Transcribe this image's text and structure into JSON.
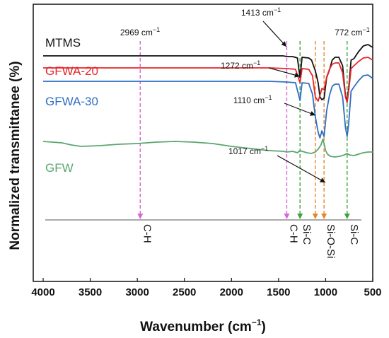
{
  "chart_data": {
    "type": "line",
    "xlabel": "Wavenumber (cm",
    "xlabel_sup": "−1",
    "xlabel_end": ")",
    "ylabel": "Normalized transmittanee (%)",
    "xlim": [
      4000,
      500
    ],
    "x_ticks": [
      4000,
      3500,
      3000,
      2500,
      2000,
      1500,
      1000,
      500
    ],
    "y_ticks_shown": false,
    "grid": false,
    "series": [
      {
        "name": "MTMS",
        "color": "#111111",
        "points": [
          [
            4000,
            76
          ],
          [
            3000,
            76
          ],
          [
            2000,
            76
          ],
          [
            1600,
            76
          ],
          [
            1450,
            76
          ],
          [
            1413,
            75
          ],
          [
            1350,
            75
          ],
          [
            1300,
            73
          ],
          [
            1272,
            45
          ],
          [
            1250,
            74
          ],
          [
            1180,
            73
          ],
          [
            1150,
            70
          ],
          [
            1110,
            55
          ],
          [
            1080,
            38
          ],
          [
            1060,
            18
          ],
          [
            1040,
            14
          ],
          [
            1017,
            16
          ],
          [
            990,
            45
          ],
          [
            960,
            56
          ],
          [
            930,
            70
          ],
          [
            900,
            74
          ],
          [
            860,
            74
          ],
          [
            820,
            62
          ],
          [
            790,
            20
          ],
          [
            772,
            12
          ],
          [
            755,
            30
          ],
          [
            730,
            70
          ],
          [
            700,
            72
          ],
          [
            650,
            82
          ],
          [
            600,
            90
          ],
          [
            550,
            92
          ],
          [
            500,
            88
          ]
        ]
      },
      {
        "name": "GFWA-20",
        "color": "#e8262a",
        "points": [
          [
            4000,
            59
          ],
          [
            3000,
            59
          ],
          [
            2000,
            59
          ],
          [
            1600,
            59
          ],
          [
            1413,
            58
          ],
          [
            1320,
            57
          ],
          [
            1272,
            38
          ],
          [
            1250,
            58
          ],
          [
            1180,
            57
          ],
          [
            1140,
            48
          ],
          [
            1110,
            18
          ],
          [
            1080,
            12
          ],
          [
            1060,
            20
          ],
          [
            1040,
            30
          ],
          [
            1017,
            28
          ],
          [
            990,
            46
          ],
          [
            960,
            57
          ],
          [
            930,
            64
          ],
          [
            900,
            66
          ],
          [
            860,
            66
          ],
          [
            820,
            52
          ],
          [
            790,
            18
          ],
          [
            772,
            10
          ],
          [
            755,
            26
          ],
          [
            730,
            58
          ],
          [
            700,
            62
          ],
          [
            650,
            68
          ],
          [
            600,
            73
          ],
          [
            550,
            74
          ],
          [
            500,
            70
          ]
        ]
      },
      {
        "name": "GFWA-30",
        "color": "#2e6fc4",
        "points": [
          [
            4000,
            40
          ],
          [
            3000,
            40
          ],
          [
            2000,
            40
          ],
          [
            1600,
            40
          ],
          [
            1413,
            39
          ],
          [
            1320,
            38
          ],
          [
            1272,
            13
          ],
          [
            1250,
            38
          ],
          [
            1180,
            37
          ],
          [
            1140,
            22
          ],
          [
            1110,
            -10
          ],
          [
            1080,
            -32
          ],
          [
            1060,
            -40
          ],
          [
            1040,
            -30
          ],
          [
            1017,
            -38
          ],
          [
            990,
            -2
          ],
          [
            960,
            20
          ],
          [
            930,
            33
          ],
          [
            900,
            36
          ],
          [
            860,
            36
          ],
          [
            820,
            18
          ],
          [
            790,
            -25
          ],
          [
            772,
            -38
          ],
          [
            755,
            -20
          ],
          [
            730,
            26
          ],
          [
            700,
            32
          ],
          [
            650,
            41
          ],
          [
            600,
            48
          ],
          [
            550,
            49
          ],
          [
            500,
            44
          ]
        ]
      },
      {
        "name": "GFW",
        "color": "#5aa66e",
        "points": [
          [
            4000,
            -45
          ],
          [
            3800,
            -47
          ],
          [
            3700,
            -50
          ],
          [
            3600,
            -52
          ],
          [
            3400,
            -51
          ],
          [
            3200,
            -49
          ],
          [
            3000,
            -48
          ],
          [
            2800,
            -46
          ],
          [
            2600,
            -45
          ],
          [
            2400,
            -46
          ],
          [
            2200,
            -48
          ],
          [
            2000,
            -52
          ],
          [
            1800,
            -55
          ],
          [
            1600,
            -58
          ],
          [
            1450,
            -59
          ],
          [
            1413,
            -60
          ],
          [
            1350,
            -59
          ],
          [
            1300,
            -61
          ],
          [
            1272,
            -58
          ],
          [
            1200,
            -61
          ],
          [
            1150,
            -62
          ],
          [
            1110,
            -60
          ],
          [
            1080,
            -56
          ],
          [
            1050,
            -50
          ],
          [
            1030,
            -42
          ],
          [
            1017,
            -48
          ],
          [
            1000,
            -58
          ],
          [
            980,
            -63
          ],
          [
            950,
            -66
          ],
          [
            900,
            -67
          ],
          [
            850,
            -66
          ],
          [
            800,
            -64
          ],
          [
            772,
            -62
          ],
          [
            750,
            -64
          ],
          [
            700,
            -65
          ],
          [
            650,
            -63
          ],
          [
            600,
            -61
          ],
          [
            550,
            -60
          ],
          [
            500,
            -60
          ]
        ]
      }
    ],
    "baseline": {
      "color": "#777777",
      "y": -72
    },
    "markers": [
      {
        "x": 2969,
        "color": "#d668d6",
        "label": "C-H",
        "top_label": "2969 cm",
        "top_sup": "−1"
      },
      {
        "x": 1413,
        "color": "#d668d6",
        "label": "C-H",
        "top_label": "1413 cm",
        "top_sup": "−1"
      },
      {
        "x": 1272,
        "color": "#3ba53b",
        "label": "Si-C"
      },
      {
        "x": 1110,
        "color": "#e8862a",
        "label": ""
      },
      {
        "x": 1017,
        "color": "#e8862a",
        "label": "Si-O-Si"
      },
      {
        "x": 772,
        "color": "#3ba53b",
        "label": "Si-C",
        "top_label": "772 cm",
        "top_sup": "−1"
      }
    ],
    "annotations": [
      {
        "text": "1272 cm",
        "sup": "−1"
      },
      {
        "text": "1110 cm",
        "sup": "−1"
      },
      {
        "text": "1017 cm",
        "sup": "−1"
      }
    ]
  },
  "legend_labels": {
    "mtms": "MTMS",
    "gfwa20": "GFWA-20",
    "gfwa30": "GFWA-30",
    "gfw": "GFW"
  }
}
